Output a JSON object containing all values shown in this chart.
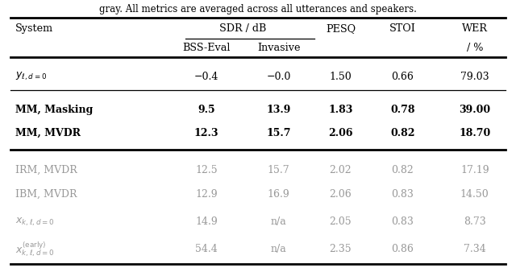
{
  "caption": "gray. All metrics are averaged across all utterances and speakers.",
  "rows": [
    {
      "system": "$y_{\\ell,d=0}$",
      "bss": "−0.4",
      "inv": "−0.0",
      "pesq": "1.50",
      "stoi": "0.66",
      "wer": "79.03",
      "gray": false,
      "bold": false
    },
    {
      "system": "MM, Masking",
      "bss": "9.5",
      "inv": "13.9",
      "pesq": "1.83",
      "stoi": "0.78",
      "wer": "39.00",
      "gray": false,
      "bold": true
    },
    {
      "system": "MM, MVDR",
      "bss": "12.3",
      "inv": "15.7",
      "pesq": "2.06",
      "stoi": "0.82",
      "wer": "18.70",
      "gray": false,
      "bold": true
    },
    {
      "system": "IRM, MVDR",
      "bss": "12.5",
      "inv": "15.7",
      "pesq": "2.02",
      "stoi": "0.82",
      "wer": "17.19",
      "gray": true,
      "bold": false
    },
    {
      "system": "IBM, MVDR",
      "bss": "12.9",
      "inv": "16.9",
      "pesq": "2.06",
      "stoi": "0.83",
      "wer": "14.50",
      "gray": true,
      "bold": false
    },
    {
      "system": "$x_{k,\\ell,d=0}$",
      "bss": "14.9",
      "inv": "n/a",
      "pesq": "2.05",
      "stoi": "0.83",
      "wer": "8.73",
      "gray": true,
      "bold": false
    },
    {
      "system": "$x^{\\mathrm{(early)}}_{k,\\ell,d=0}$",
      "bss": "54.4",
      "inv": "n/a",
      "pesq": "2.35",
      "stoi": "0.86",
      "wer": "7.34",
      "gray": true,
      "bold": false
    }
  ],
  "gray_color": "#999999",
  "background_color": "#ffffff"
}
